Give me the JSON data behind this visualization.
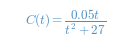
{
  "formula_text": "$C(t) = \\dfrac{0.05t}{t^{2} + 27}$",
  "text_color": "#4a90c8",
  "background_color": "#ffffff",
  "fontsize": 9.5,
  "fig_width": 1.31,
  "fig_height": 0.45,
  "dpi": 100
}
